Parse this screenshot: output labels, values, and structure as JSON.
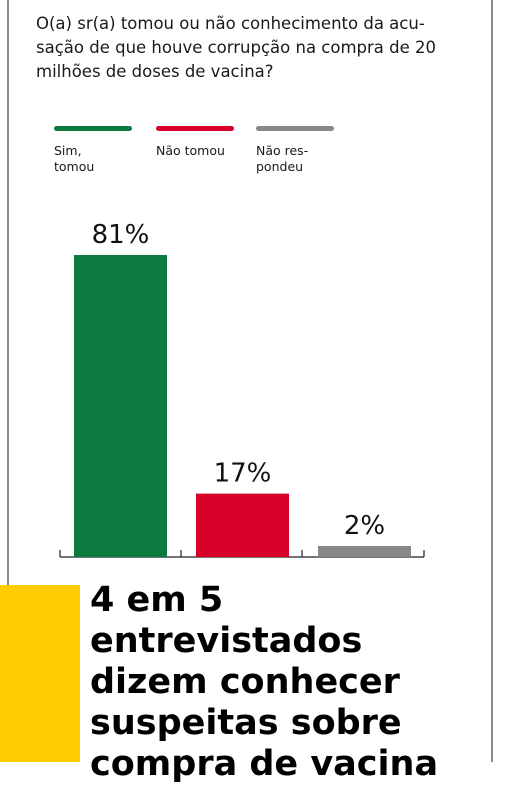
{
  "question": "O(a) sr(a) tomou ou não conhecimento da acu-\nsação de que houve corrupção na compra de 20\nmilhões de doses de vacina?",
  "legend": [
    {
      "label": "Sim,\ntomou",
      "color": "#0a7a3e"
    },
    {
      "label": "Não tomou",
      "color": "#d6002a"
    },
    {
      "label": "Não res-\npondeu",
      "color": "#888888"
    }
  ],
  "headline": "4 em 5 entrevistados\ndizem conhecer\nsuspeitas sobre\ncompra de vacina",
  "colors": {
    "accent_yellow": "#ffcc00",
    "frame": "#8a8a8a"
  },
  "chart_data": {
    "type": "bar",
    "categories": [
      "Sim, tomou",
      "Não tomou",
      "Não respondeu"
    ],
    "values": [
      81,
      17,
      2
    ],
    "labels": [
      "81%",
      "17%",
      "2%"
    ],
    "colors": [
      "#0a7a3e",
      "#d6002a",
      "#888888"
    ],
    "ylim": [
      0,
      81
    ],
    "grid": false
  }
}
